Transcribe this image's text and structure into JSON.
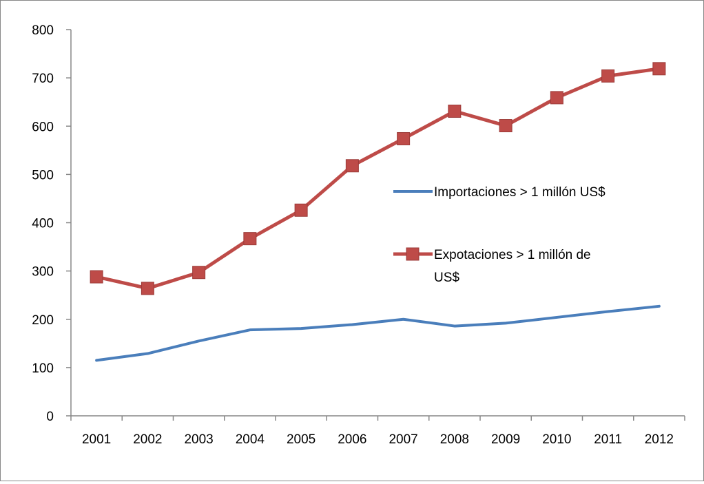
{
  "chart_data": {
    "type": "line",
    "title": "",
    "xlabel": "",
    "ylabel": "",
    "categories": [
      "2001",
      "2002",
      "2003",
      "2004",
      "2005",
      "2006",
      "2007",
      "2008",
      "2009",
      "2010",
      "2011",
      "2012"
    ],
    "ylim": [
      0,
      800
    ],
    "yticks": [
      0,
      100,
      200,
      300,
      400,
      500,
      600,
      700,
      800
    ],
    "grid": false,
    "legend_position": "right",
    "series": [
      {
        "name": "Importaciones > 1 millón US$",
        "legend_lines": [
          "Importaciones > 1 millón US$"
        ],
        "color": "#4a7ebb",
        "marker": "none",
        "values": [
          115,
          129,
          155,
          178,
          181,
          189,
          200,
          186,
          192,
          204,
          216,
          227
        ]
      },
      {
        "name": "Expotaciones > 1 millón de US$",
        "legend_lines": [
          "Expotaciones > 1 millón de",
          "US$"
        ],
        "color": "#be4b48",
        "marker": "square",
        "values": [
          288,
          264,
          297,
          367,
          426,
          518,
          574,
          631,
          601,
          659,
          704,
          719
        ]
      }
    ]
  }
}
